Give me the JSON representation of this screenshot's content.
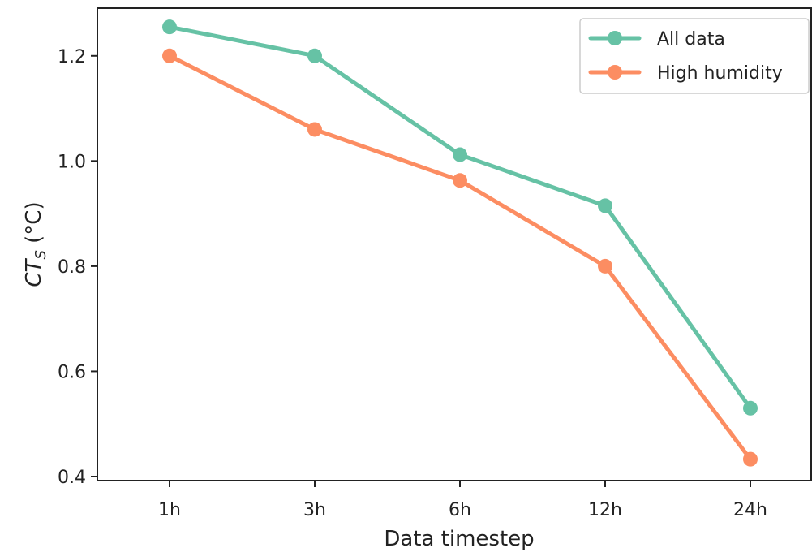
{
  "chart_data": {
    "type": "line",
    "xlabel": "Data timestep",
    "ylabel": "CT",
    "ylabel_subscript": "S",
    "ylabel_unit": " (°C)",
    "categories": [
      "1h",
      "3h",
      "6h",
      "12h",
      "24h"
    ],
    "ylim": [
      0.4,
      1.3
    ],
    "yticks": [
      0.4,
      0.6,
      0.8,
      1.0,
      1.2
    ],
    "ytick_labels": [
      "0.4",
      "0.6",
      "0.8",
      "1.0",
      "1.2"
    ],
    "grid": false,
    "legend_position": "top-right",
    "series": [
      {
        "name": "All data",
        "color": "#66c2a5",
        "values": [
          1.255,
          1.2,
          1.012,
          0.915,
          0.53
        ]
      },
      {
        "name": "High humidity",
        "color": "#fc8d62",
        "values": [
          1.2,
          1.06,
          0.963,
          0.8,
          0.433
        ]
      }
    ]
  }
}
